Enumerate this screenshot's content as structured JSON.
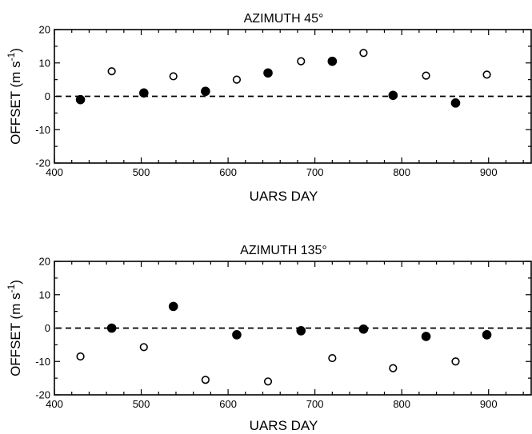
{
  "chart_data": [
    {
      "type": "scatter",
      "title": "AZIMUTH 45°",
      "xlabel": "UARS DAY",
      "ylabel": "OFFSET (m s",
      "ylabel_sup": "-1",
      "ylabel_close": ")",
      "xlim": [
        400,
        950
      ],
      "ylim": [
        -20,
        20
      ],
      "xticks": [
        400,
        500,
        600,
        700,
        800,
        900
      ],
      "yticks": [
        -20,
        -10,
        0,
        10,
        20
      ],
      "reference_line": 0,
      "grid": false,
      "series": [
        {
          "marker": "filled-circle",
          "points": [
            [
              430,
              -1
            ],
            [
              503,
              1
            ],
            [
              574,
              1.5
            ],
            [
              646,
              7
            ],
            [
              720,
              10.5
            ],
            [
              790,
              0.3
            ],
            [
              862,
              -2
            ]
          ]
        },
        {
          "marker": "open-circle",
          "points": [
            [
              466,
              7.5
            ],
            [
              537,
              6
            ],
            [
              610,
              5
            ],
            [
              684,
              10.5
            ],
            [
              756,
              13
            ],
            [
              828,
              6.2
            ],
            [
              898,
              6.5
            ]
          ]
        }
      ]
    },
    {
      "type": "scatter",
      "title": "AZIMUTH 135°",
      "xlabel": "UARS DAY",
      "ylabel": "OFFSET (m s",
      "ylabel_sup": "-1",
      "ylabel_close": ")",
      "xlim": [
        400,
        950
      ],
      "ylim": [
        -20,
        20
      ],
      "xticks": [
        400,
        500,
        600,
        700,
        800,
        900
      ],
      "yticks": [
        -20,
        -10,
        0,
        10,
        20
      ],
      "reference_line": 0,
      "grid": false,
      "series": [
        {
          "marker": "filled-circle",
          "points": [
            [
              466,
              0
            ],
            [
              537,
              6.5
            ],
            [
              610,
              -2
            ],
            [
              684,
              -0.8
            ],
            [
              756,
              -0.3
            ],
            [
              828,
              -2.5
            ],
            [
              898,
              -2
            ]
          ]
        },
        {
          "marker": "open-circle",
          "points": [
            [
              430,
              -8.5
            ],
            [
              503,
              -5.7
            ],
            [
              574,
              -15.5
            ],
            [
              646,
              -16
            ],
            [
              720,
              -9
            ],
            [
              790,
              -12
            ],
            [
              862,
              -10
            ]
          ]
        }
      ]
    }
  ]
}
